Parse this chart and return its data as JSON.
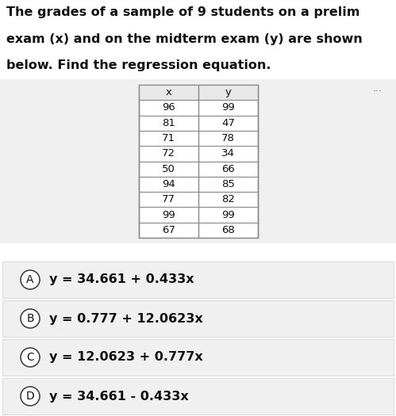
{
  "title_line1": "The grades of a sample of 9 students on a prelim",
  "title_line2": "exam (x) and on the midterm exam (y) are shown",
  "title_line3": "below. Find the regression equation.",
  "x_values": [
    96,
    81,
    71,
    72,
    50,
    94,
    77,
    99,
    67
  ],
  "y_values": [
    99,
    47,
    78,
    34,
    66,
    85,
    82,
    99,
    68
  ],
  "col_headers": [
    "x",
    "y"
  ],
  "choices": [
    [
      "A",
      "y = 34.661 + 0.433x"
    ],
    [
      "B",
      "y = 0.777 + 12.0623x"
    ],
    [
      "C",
      "y = 12.0623 + 0.777x"
    ],
    [
      "D",
      "y = 34.661 - 0.433x"
    ]
  ],
  "bg_color": "#ffffff",
  "section_bg": "#f0f0f0",
  "table_border": "#888888",
  "choice_bg": "#f0f0f0",
  "choice_border": "#cccccc",
  "dots_color": "#777777",
  "title_fontsize": 11.5,
  "table_fontsize": 9.5,
  "choice_fontsize": 11.5,
  "circle_fontsize": 10.0
}
